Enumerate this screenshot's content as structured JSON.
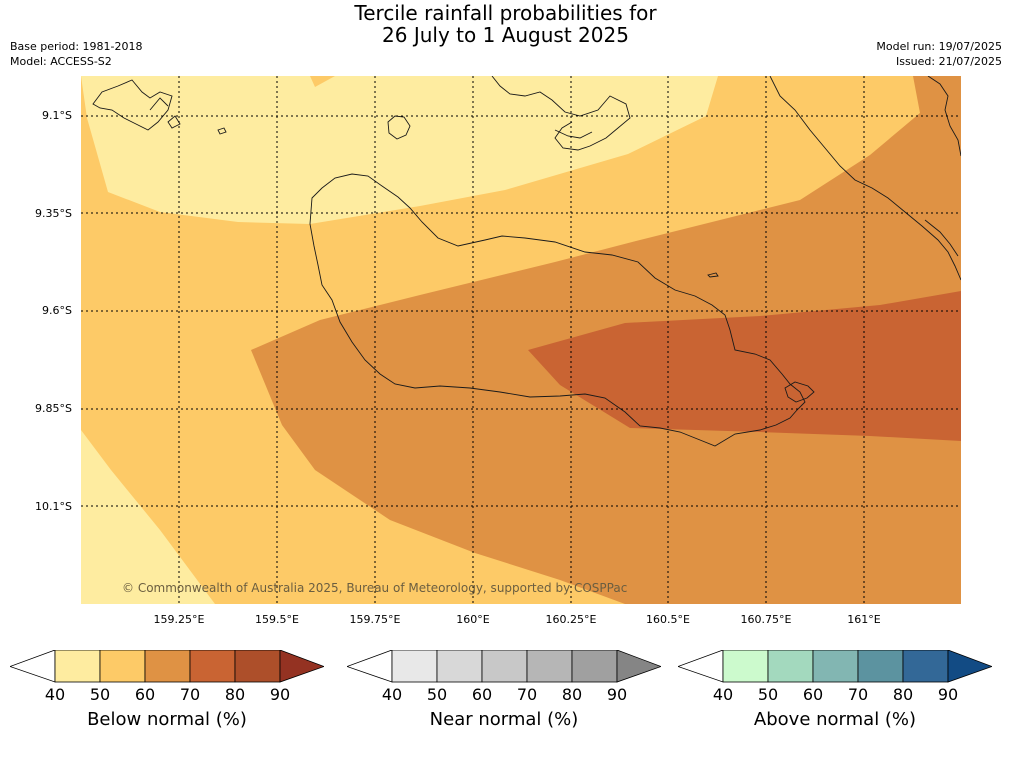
{
  "title": {
    "line1": "Tercile rainfall probabilities for",
    "line2": "26 July to 1 August 2025"
  },
  "meta": {
    "base_period": "Base period: 1981-2018",
    "model": "Model: ACCESS-S2",
    "model_run": "Model run: 19/07/2025",
    "issued": "Issued: 21/07/2025"
  },
  "map": {
    "lat_labels": [
      "9.1°S",
      "9.35°S",
      "9.6°S",
      "9.85°S",
      "10.1°S"
    ],
    "lon_labels": [
      "159.25°E",
      "159.5°E",
      "159.75°E",
      "160°E",
      "160.25°E",
      "160.5°E",
      "160.75°E",
      "161°E"
    ],
    "copyright": "© Commonwealth of Australia 2025, Bureau of Meteorology, supported by COSPPac",
    "colors": {
      "below_40_50": "#feeca0",
      "below_50_60": "#fdca67",
      "below_60_70": "#df9244",
      "below_70_80": "#c96433"
    }
  },
  "colorbars": [
    {
      "title": "Below normal (%)",
      "ticks": [
        "40",
        "50",
        "60",
        "70",
        "80",
        "90"
      ],
      "colors": [
        "#feeca0",
        "#fdca67",
        "#df9244",
        "#c96433",
        "#ad4f2a",
        "#943222"
      ]
    },
    {
      "title": "Near normal (%)",
      "ticks": [
        "40",
        "50",
        "60",
        "70",
        "80",
        "90"
      ],
      "colors": [
        "#e8e8e8",
        "#d8d8d8",
        "#c8c8c8",
        "#b6b6b6",
        "#a0a0a0",
        "#858585"
      ]
    },
    {
      "title": "Above normal (%)",
      "ticks": [
        "40",
        "50",
        "60",
        "70",
        "80",
        "90"
      ],
      "colors": [
        "#ccfacd",
        "#a3d9be",
        "#82b6b2",
        "#5c93a0",
        "#336897",
        "#124b84"
      ]
    }
  ]
}
